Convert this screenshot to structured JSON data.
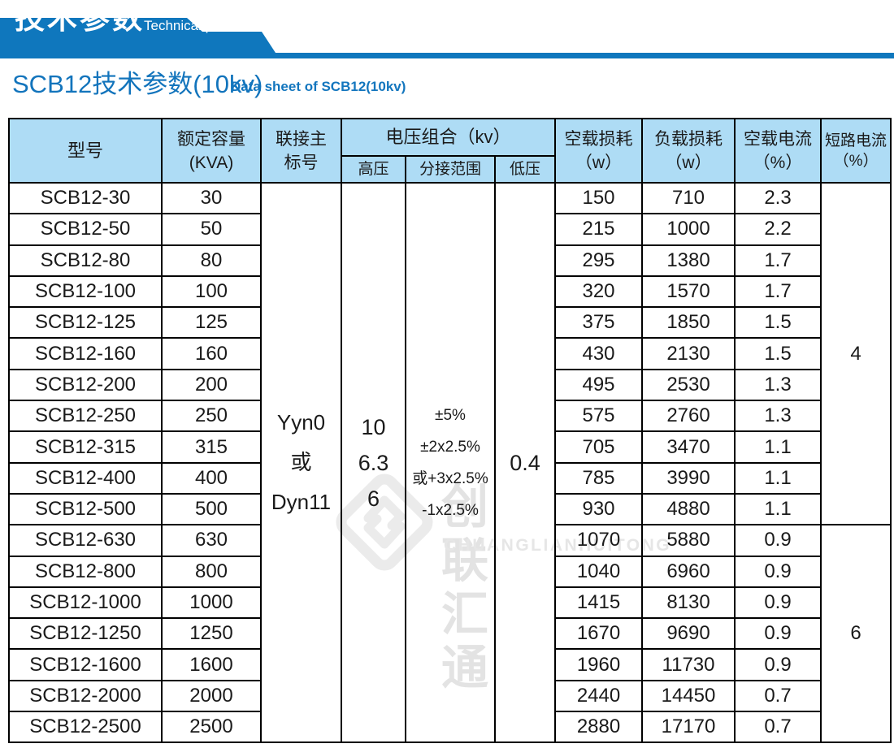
{
  "banner": {
    "title_zh": "技术参数",
    "title_en": "Technical parameter",
    "bar_color": "#0f77bd"
  },
  "section": {
    "title_zh": "SCB12技术参数(10kv)",
    "title_en": "Data sheet of SCB12(10kv)",
    "text_color": "#1274bc"
  },
  "watermark": {
    "logo": "diamond-logo",
    "text_zh": "创联汇通",
    "text_en": "CHUANGLIANHUITONG"
  },
  "table": {
    "colors": {
      "header_bg": "#aedcf5",
      "border": "#000000"
    },
    "header": {
      "model": "型号",
      "capacity_line1": "额定容量",
      "capacity_line2": "(KVA)",
      "connection_line1": "联接主",
      "connection_line2": "标号",
      "voltage_group": "电压组合（kv）",
      "hv": "高压",
      "tap": "分接范围",
      "lv": "低压",
      "no_load_loss_line1": "空载损耗",
      "no_load_loss_line2": "（w）",
      "load_loss_line1": "负载损耗",
      "load_loss_line2": "（w）",
      "no_load_current_line1": "空载电流",
      "no_load_current_line2": "（%）",
      "short_circuit_line1": "短路电流",
      "short_circuit_line2": "（%）"
    },
    "merged": {
      "connection": [
        "Yyn0",
        "或",
        "Dyn11"
      ],
      "hv": [
        "10",
        "6.3",
        "6"
      ],
      "tap": [
        "±5%",
        "±2x2.5%",
        "或+3x2.5%",
        "-1x2.5%"
      ],
      "lv": "0.4",
      "short_circuit_top": "4",
      "short_circuit_top_rows": 11,
      "short_circuit_bottom": "6",
      "short_circuit_bottom_rows": 7
    },
    "rows": [
      {
        "model": "SCB12-30",
        "kva": "30",
        "no_load_loss": "150",
        "load_loss": "710",
        "no_load_current": "2.3"
      },
      {
        "model": "SCB12-50",
        "kva": "50",
        "no_load_loss": "215",
        "load_loss": "1000",
        "no_load_current": "2.2"
      },
      {
        "model": "SCB12-80",
        "kva": "80",
        "no_load_loss": "295",
        "load_loss": "1380",
        "no_load_current": "1.7"
      },
      {
        "model": "SCB12-100",
        "kva": "100",
        "no_load_loss": "320",
        "load_loss": "1570",
        "no_load_current": "1.7"
      },
      {
        "model": "SCB12-125",
        "kva": "125",
        "no_load_loss": "375",
        "load_loss": "1850",
        "no_load_current": "1.5"
      },
      {
        "model": "SCB12-160",
        "kva": "160",
        "no_load_loss": "430",
        "load_loss": "2130",
        "no_load_current": "1.5"
      },
      {
        "model": "SCB12-200",
        "kva": "200",
        "no_load_loss": "495",
        "load_loss": "2530",
        "no_load_current": "1.3"
      },
      {
        "model": "SCB12-250",
        "kva": "250",
        "no_load_loss": "575",
        "load_loss": "2760",
        "no_load_current": "1.3"
      },
      {
        "model": "SCB12-315",
        "kva": "315",
        "no_load_loss": "705",
        "load_loss": "3470",
        "no_load_current": "1.1"
      },
      {
        "model": "SCB12-400",
        "kva": "400",
        "no_load_loss": "785",
        "load_loss": "3990",
        "no_load_current": "1.1"
      },
      {
        "model": "SCB12-500",
        "kva": "500",
        "no_load_loss": "930",
        "load_loss": "4880",
        "no_load_current": "1.1"
      },
      {
        "model": "SCB12-630",
        "kva": "630",
        "no_load_loss": "1070",
        "load_loss": "5880",
        "no_load_current": "0.9"
      },
      {
        "model": "SCB12-800",
        "kva": "800",
        "no_load_loss": "1040",
        "load_loss": "6960",
        "no_load_current": "0.9"
      },
      {
        "model": "SCB12-1000",
        "kva": "1000",
        "no_load_loss": "1415",
        "load_loss": "8130",
        "no_load_current": "0.9"
      },
      {
        "model": "SCB12-1250",
        "kva": "1250",
        "no_load_loss": "1670",
        "load_loss": "9690",
        "no_load_current": "0.9"
      },
      {
        "model": "SCB12-1600",
        "kva": "1600",
        "no_load_loss": "1960",
        "load_loss": "11730",
        "no_load_current": "0.9"
      },
      {
        "model": "SCB12-2000",
        "kva": "2000",
        "no_load_loss": "2440",
        "load_loss": "14450",
        "no_load_current": "0.7"
      },
      {
        "model": "SCB12-2500",
        "kva": "2500",
        "no_load_loss": "2880",
        "load_loss": "17170",
        "no_load_current": "0.7"
      }
    ]
  }
}
